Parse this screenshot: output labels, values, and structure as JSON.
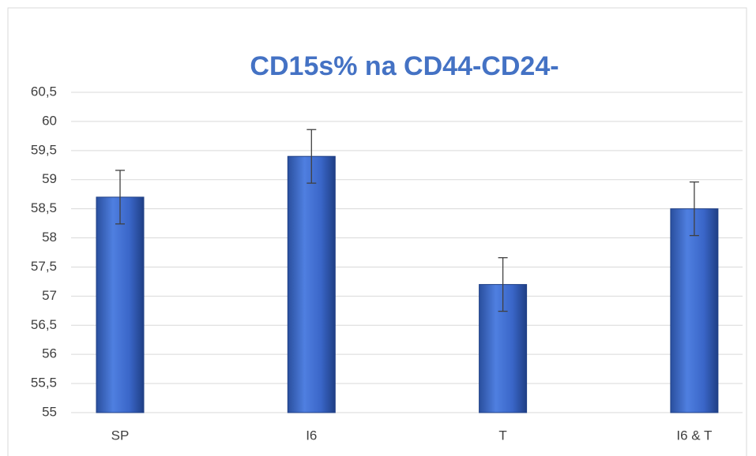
{
  "chart_data": {
    "type": "bar",
    "title": "CD15s% na CD44-CD24-",
    "categories": [
      "SP",
      "I6",
      "T",
      "I6 & T"
    ],
    "values": [
      58.7,
      59.4,
      57.2,
      58.5
    ],
    "errors": [
      0.46,
      0.46,
      0.46,
      0.46
    ],
    "color": "#3a66c8",
    "ylim": [
      55,
      60.5
    ],
    "yticks": [
      55,
      {
        "value": 55.5,
        "label": "55,5"
      },
      56,
      {
        "value": 56.5,
        "label": "56,5"
      },
      57,
      {
        "value": 57.5,
        "label": "57,5"
      },
      58,
      {
        "value": 58.5,
        "label": "58,5"
      },
      59,
      {
        "value": 59.5,
        "label": "59,5"
      },
      60,
      {
        "value": 60.5,
        "label": "60,5"
      }
    ],
    "grid": true
  }
}
